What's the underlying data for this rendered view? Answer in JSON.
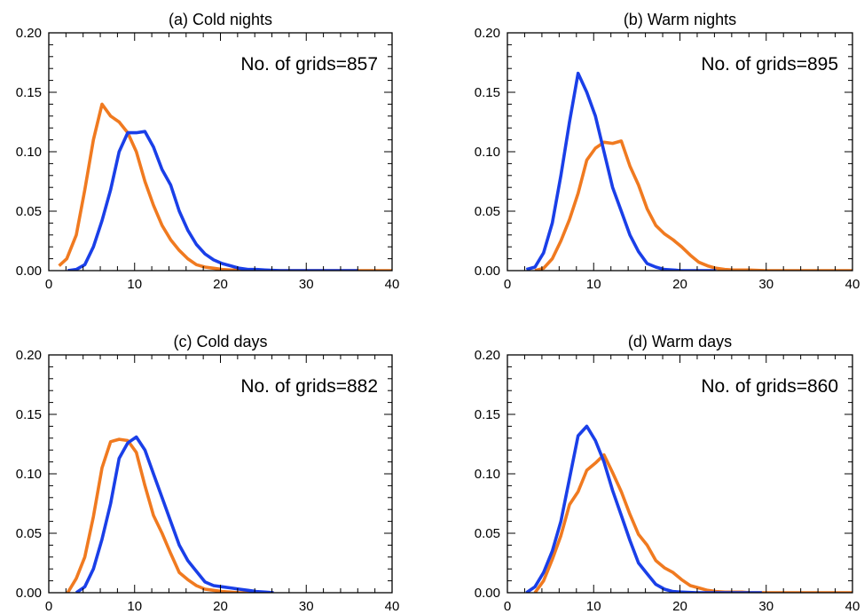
{
  "chart_data": [
    {
      "type": "line",
      "title": "(a) Cold nights",
      "annotation": "No. of grids=857",
      "xlim": [
        0,
        40
      ],
      "ylim": [
        0,
        0.2
      ],
      "xticks": [
        "0",
        "10",
        "20",
        "30",
        "40"
      ],
      "yticks": [
        "0.00",
        "0.05",
        "0.10",
        "0.15",
        "0.20"
      ],
      "grid": false,
      "series": [
        {
          "color": "#f07a20",
          "x": [
            1.2,
            2.1,
            3.2,
            4.2,
            5.2,
            6.2,
            7.2,
            8.2,
            9.2,
            10.2,
            11.2,
            12.2,
            13.2,
            14.2,
            15.2,
            16.2,
            17.2,
            18.2,
            19.2,
            20.2,
            21.2,
            22.2,
            23.2,
            25,
            30,
            35,
            40
          ],
          "y": [
            0.004,
            0.01,
            0.03,
            0.068,
            0.11,
            0.14,
            0.13,
            0.125,
            0.116,
            0.1,
            0.075,
            0.055,
            0.038,
            0.026,
            0.017,
            0.01,
            0.005,
            0.003,
            0.002,
            0.001,
            0.0005,
            0.0005,
            0,
            0,
            0,
            0,
            0
          ]
        },
        {
          "color": "#1a3fe8",
          "x": [
            2.2,
            3.2,
            4.2,
            5.2,
            6.2,
            7.2,
            8.2,
            9.2,
            10.2,
            11.2,
            12.2,
            13.2,
            14.2,
            15.2,
            16.2,
            17.2,
            18.2,
            19.2,
            20.2,
            21.2,
            22.2,
            23.2,
            24.2,
            25.2,
            27,
            30,
            33,
            36
          ],
          "y": [
            0,
            0.001,
            0.005,
            0.02,
            0.042,
            0.068,
            0.1,
            0.116,
            0.116,
            0.117,
            0.104,
            0.085,
            0.072,
            0.05,
            0.034,
            0.022,
            0.014,
            0.009,
            0.006,
            0.004,
            0.002,
            0.001,
            0.001,
            0.0005,
            0,
            0,
            0,
            0
          ]
        }
      ]
    },
    {
      "type": "line",
      "title": "(b) Warm nights",
      "annotation": "No. of grids=895",
      "xlim": [
        0,
        40
      ],
      "ylim": [
        0,
        0.2
      ],
      "xticks": [
        "0",
        "10",
        "20",
        "30",
        "40"
      ],
      "yticks": [
        "0.00",
        "0.05",
        "0.10",
        "0.15",
        "0.20"
      ],
      "grid": false,
      "series": [
        {
          "color": "#f07a20",
          "x": [
            3.2,
            4.2,
            5.2,
            6.2,
            7.2,
            8.2,
            9.2,
            10.2,
            11.2,
            12.2,
            13.2,
            14.2,
            15.2,
            16.2,
            17.2,
            18.2,
            19.2,
            20.2,
            21.2,
            22.2,
            23.2,
            24.2,
            25.2,
            26.2,
            28,
            30,
            35,
            40
          ],
          "y": [
            0,
            0.002,
            0.01,
            0.025,
            0.043,
            0.065,
            0.093,
            0.103,
            0.108,
            0.107,
            0.109,
            0.088,
            0.072,
            0.052,
            0.038,
            0.031,
            0.026,
            0.02,
            0.013,
            0.007,
            0.004,
            0.002,
            0.001,
            0.0005,
            0.0005,
            0,
            0,
            0
          ]
        },
        {
          "color": "#1a3fe8",
          "x": [
            2.2,
            3.2,
            4.2,
            5.2,
            6.2,
            7.2,
            8.2,
            9.2,
            10.2,
            11.2,
            12.2,
            13.2,
            14.2,
            15.2,
            16.2,
            17.2,
            18.2,
            19.2,
            20.2,
            21.2,
            22.2,
            23.2,
            24.2
          ],
          "y": [
            0.001,
            0.003,
            0.015,
            0.04,
            0.08,
            0.125,
            0.166,
            0.15,
            0.13,
            0.1,
            0.07,
            0.05,
            0.03,
            0.016,
            0.006,
            0.003,
            0.001,
            0.0005,
            0,
            0,
            0,
            0,
            0
          ]
        }
      ]
    },
    {
      "type": "line",
      "title": "(c) Cold days",
      "annotation": "No. of grids=882",
      "xlim": [
        0,
        40
      ],
      "ylim": [
        0,
        0.2
      ],
      "xticks": [
        "0",
        "10",
        "20",
        "30",
        "40"
      ],
      "yticks": [
        "0.00",
        "0.05",
        "0.10",
        "0.15",
        "0.20"
      ],
      "grid": false,
      "series": [
        {
          "color": "#f07a20",
          "x": [
            2.2,
            3.2,
            4.2,
            5.2,
            6.2,
            7.2,
            8.2,
            9.2,
            10.2,
            11.2,
            12.2,
            13.2,
            14.2,
            15.2,
            16.2,
            17.2,
            18.2,
            19.2,
            20.2,
            21.2,
            22.2,
            23.2,
            24.2,
            25.2,
            26.2
          ],
          "y": [
            0,
            0.012,
            0.03,
            0.064,
            0.105,
            0.127,
            0.129,
            0.128,
            0.118,
            0.09,
            0.065,
            0.05,
            0.033,
            0.017,
            0.011,
            0.006,
            0.003,
            0.002,
            0.001,
            0.0005,
            0,
            0,
            0,
            0,
            0
          ]
        },
        {
          "color": "#1a3fe8",
          "x": [
            3.2,
            4.2,
            5.2,
            6.2,
            7.2,
            8.2,
            9.2,
            10.2,
            11.2,
            12.2,
            13.2,
            14.2,
            15.2,
            16.2,
            17.2,
            18.2,
            19.2,
            20.2,
            21.2,
            22.2,
            23.2,
            24.2,
            25.2,
            26.2
          ],
          "y": [
            0,
            0.005,
            0.02,
            0.045,
            0.075,
            0.113,
            0.126,
            0.131,
            0.12,
            0.1,
            0.08,
            0.06,
            0.04,
            0.027,
            0.018,
            0.009,
            0.006,
            0.005,
            0.004,
            0.003,
            0.002,
            0.001,
            0.0005,
            0
          ]
        }
      ]
    },
    {
      "type": "line",
      "title": "(d) Warm days",
      "annotation": "No. of grids=860",
      "xlim": [
        0,
        40
      ],
      "ylim": [
        0,
        0.2
      ],
      "xticks": [
        "0",
        "10",
        "20",
        "30",
        "40"
      ],
      "yticks": [
        "0.00",
        "0.05",
        "0.10",
        "0.15",
        "0.20"
      ],
      "grid": false,
      "series": [
        {
          "color": "#f07a20",
          "x": [
            3.2,
            4.2,
            5.2,
            6.2,
            7.2,
            8.2,
            9.2,
            10.2,
            11.2,
            12.2,
            13.2,
            14.2,
            15.2,
            16.2,
            17.2,
            18.2,
            19.2,
            20.2,
            21.2,
            22.2,
            23.2,
            24.2,
            25.2,
            26.2,
            27.2,
            28.2,
            30,
            35,
            40
          ],
          "y": [
            0,
            0.01,
            0.028,
            0.048,
            0.074,
            0.085,
            0.103,
            0.109,
            0.116,
            0.101,
            0.085,
            0.066,
            0.049,
            0.04,
            0.027,
            0.021,
            0.017,
            0.011,
            0.006,
            0.004,
            0.002,
            0.001,
            0.0005,
            0.0005,
            0.0005,
            0,
            0,
            0,
            0
          ]
        },
        {
          "color": "#1a3fe8",
          "x": [
            2.2,
            3.2,
            4.2,
            5.2,
            6.2,
            7.2,
            8.2,
            9.2,
            10.2,
            11.2,
            12.2,
            13.2,
            14.2,
            15.2,
            16.2,
            17.2,
            18.2,
            19.2,
            20.2,
            22,
            25,
            29.5
          ],
          "y": [
            0,
            0.005,
            0.017,
            0.035,
            0.06,
            0.096,
            0.132,
            0.14,
            0.128,
            0.11,
            0.086,
            0.065,
            0.044,
            0.025,
            0.016,
            0.007,
            0.003,
            0.001,
            0.0005,
            0,
            0,
            0
          ]
        }
      ]
    }
  ]
}
